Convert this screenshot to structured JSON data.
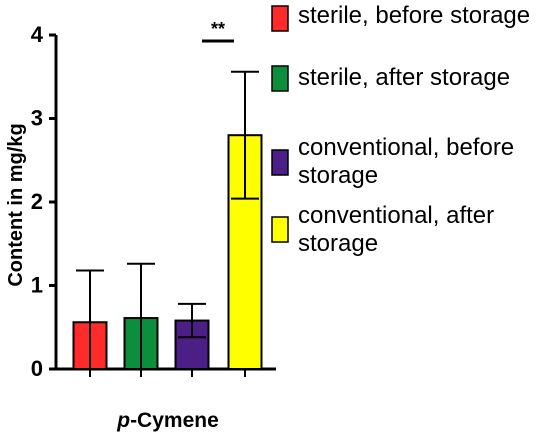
{
  "chart_data": {
    "type": "bar",
    "categories": [
      "sterile, before storage",
      "sterile, after storage",
      "conventional, before storage",
      "conventional, after storage"
    ],
    "values": [
      0.56,
      0.61,
      0.58,
      2.8
    ],
    "errors": [
      0.62,
      0.65,
      0.2,
      0.76
    ],
    "colors": [
      "#ff2b2b",
      "#0b8f3c",
      "#4b1f86",
      "#ffff00"
    ],
    "ylabel": "Content in mg/kg",
    "xlabel_prefix": "p",
    "xlabel_suffix": "-Cymene",
    "ylim": [
      0,
      4
    ],
    "yticks": [
      "0",
      "1",
      "2",
      "3",
      "4"
    ],
    "significance": "**",
    "significance_between": [
      2,
      3
    ],
    "legend": {
      "placement": "right",
      "items": [
        {
          "lines": [
            "sterile, before storage"
          ],
          "color": "#ff2b2b"
        },
        {
          "lines": [
            "sterile, after storage"
          ],
          "color": "#0b8f3c"
        },
        {
          "lines": [
            "conventional, before",
            "storage"
          ],
          "color": "#4b1f86"
        },
        {
          "lines": [
            "conventional, after",
            "storage"
          ],
          "color": "#ffff00"
        }
      ]
    }
  }
}
